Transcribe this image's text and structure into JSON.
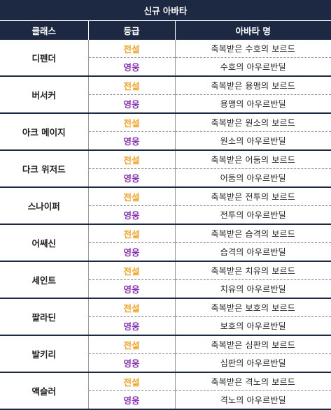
{
  "title": "신규 아바타",
  "headers": {
    "class": "클래스",
    "grade": "등급",
    "avatar": "아바타 명"
  },
  "colors": {
    "header_bg": "#1d2843",
    "legend": "#f0a020",
    "hero": "#8a35b0"
  },
  "rows": [
    {
      "class": "디펜더",
      "entries": [
        {
          "grade": "전설",
          "name": "축복받은 수호의 보르드"
        },
        {
          "grade": "영웅",
          "name": "수호의 아우르반딜"
        }
      ]
    },
    {
      "class": "버서커",
      "entries": [
        {
          "grade": "전설",
          "name": "축복받은 용맹의 보르드"
        },
        {
          "grade": "영웅",
          "name": "용맹의 아우르반딜"
        }
      ]
    },
    {
      "class": "아크 메이지",
      "entries": [
        {
          "grade": "전설",
          "name": "축복받은 원소의 보르드"
        },
        {
          "grade": "영웅",
          "name": "원소의 아우르반딜"
        }
      ]
    },
    {
      "class": "다크 위저드",
      "entries": [
        {
          "grade": "전설",
          "name": "축복받은 어둠의 보르드"
        },
        {
          "grade": "영웅",
          "name": "어둠의 아우르반딜"
        }
      ]
    },
    {
      "class": "스나이퍼",
      "entries": [
        {
          "grade": "전설",
          "name": "축복받은 전투의 보르드"
        },
        {
          "grade": "영웅",
          "name": "전투의 아우르반딜"
        }
      ]
    },
    {
      "class": "어쌔신",
      "entries": [
        {
          "grade": "전설",
          "name": "축복받은 습격의 보르드"
        },
        {
          "grade": "영웅",
          "name": "습격의 아우르반딜"
        }
      ]
    },
    {
      "class": "세인트",
      "entries": [
        {
          "grade": "전설",
          "name": "축복받은 치유의 보르드"
        },
        {
          "grade": "영웅",
          "name": "치유의 아우르반딜"
        }
      ]
    },
    {
      "class": "팔라딘",
      "entries": [
        {
          "grade": "전설",
          "name": "축복받은 보호의 보르드"
        },
        {
          "grade": "영웅",
          "name": "보호의 아우르반딜"
        }
      ]
    },
    {
      "class": "발키리",
      "entries": [
        {
          "grade": "전설",
          "name": "축복받은 심판의 보르드"
        },
        {
          "grade": "영웅",
          "name": "심판의 아우르반딜"
        }
      ]
    },
    {
      "class": "액슬러",
      "entries": [
        {
          "grade": "전설",
          "name": "축복받은 격노의 보르드"
        },
        {
          "grade": "영웅",
          "name": "격노의 아우르반딜"
        }
      ]
    }
  ]
}
